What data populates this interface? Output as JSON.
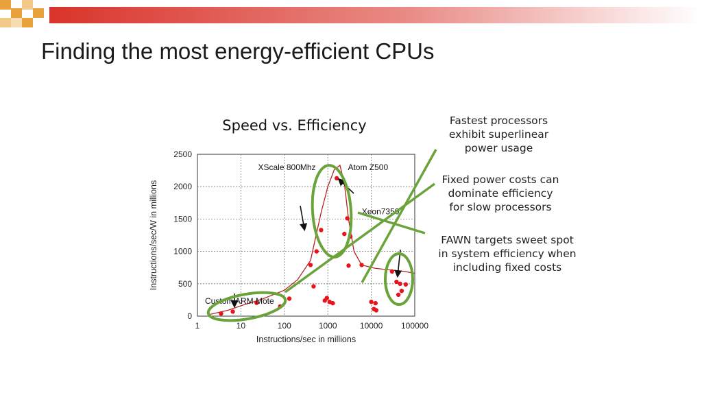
{
  "slide": {
    "title": "Finding the most energy-efficient CPUs",
    "accent_colors": [
      "#d9342b",
      "#e9a23b"
    ]
  },
  "notes": [
    "Fastest processors\nexhibit superlinear\npower usage",
    "Fixed power costs can\ndominate efficiency\nfor slow processors",
    "FAWN targets sweet spot\nin system efficiency when\nincluding fixed costs"
  ],
  "chart_data": {
    "type": "scatter",
    "title": "Speed vs. Efficiency",
    "xlabel": "Instructions/sec in millions",
    "ylabel": "Instructions/sec/W in millions",
    "x_scale": "log",
    "xlim": [
      1,
      100000
    ],
    "ylim": [
      0,
      2500
    ],
    "x_ticks": [
      "1",
      "10",
      "100",
      "1000",
      "10000",
      "100000"
    ],
    "y_ticks": [
      "0",
      "500",
      "1000",
      "1500",
      "2000",
      "2500"
    ],
    "grid": true,
    "point_color": "#e8141b",
    "curve_color": "#b5221f",
    "annotation_color": "#6aa33a",
    "points": [
      [
        3.5,
        40
      ],
      [
        6.5,
        70
      ],
      [
        23,
        205
      ],
      [
        80,
        150
      ],
      [
        130,
        270
      ],
      [
        400,
        790
      ],
      [
        470,
        460
      ],
      [
        550,
        1000
      ],
      [
        700,
        1330
      ],
      [
        850,
        240
      ],
      [
        950,
        280
      ],
      [
        1100,
        220
      ],
      [
        1300,
        200
      ],
      [
        1600,
        2130
      ],
      [
        2400,
        1270
      ],
      [
        2800,
        1510
      ],
      [
        3000,
        780
      ],
      [
        3300,
        1230
      ],
      [
        6000,
        790
      ],
      [
        10000,
        220
      ],
      [
        11500,
        110
      ],
      [
        12500,
        200
      ],
      [
        13000,
        90
      ],
      [
        30000,
        690
      ],
      [
        38000,
        530
      ],
      [
        42000,
        330
      ],
      [
        46000,
        500
      ],
      [
        50000,
        390
      ],
      [
        62000,
        490
      ]
    ],
    "trend": [
      [
        2,
        30
      ],
      [
        5,
        90
      ],
      [
        10,
        160
      ],
      [
        30,
        260
      ],
      [
        100,
        400
      ],
      [
        200,
        560
      ],
      [
        400,
        860
      ],
      [
        700,
        1600
      ],
      [
        1000,
        2000
      ],
      [
        1400,
        2260
      ],
      [
        1900,
        2330
      ],
      [
        2400,
        2050
      ],
      [
        3000,
        1500
      ],
      [
        4000,
        1000
      ],
      [
        6000,
        790
      ],
      [
        12000,
        740
      ],
      [
        30000,
        710
      ],
      [
        60000,
        690
      ],
      [
        100000,
        660
      ]
    ],
    "annotations": [
      {
        "label": "XScale 800Mhz",
        "x": 220,
        "y": 1790
      },
      {
        "label": "Atom Z500",
        "x": 3000,
        "y": 1790
      },
      {
        "label": "Xeon7350",
        "x": 6500,
        "y": 1120
      },
      {
        "label": "Custom ARM Mote",
        "x": 1.6,
        "y": 500
      }
    ]
  }
}
